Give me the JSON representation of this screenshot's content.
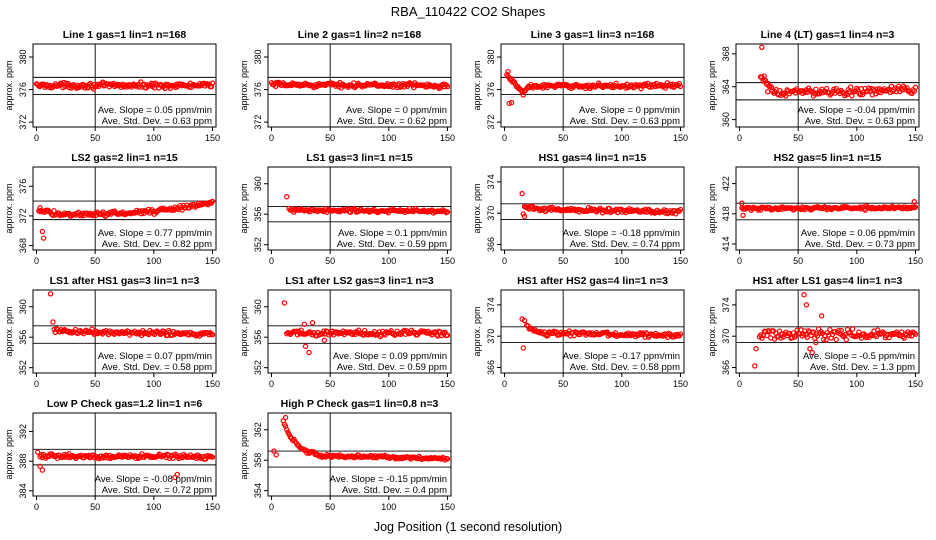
{
  "figure": {
    "title": "RBA_110422  CO2 Shapes",
    "xlabel": "Jog Position (1 second resolution)",
    "colors": {
      "points": "#ff0000",
      "axes": "#000000",
      "background": "#ffffff"
    }
  },
  "chart_data": [
    {
      "type": "scatter",
      "title": "Line 1 gas=1 lin=1 n=168",
      "ylabel": "approx. ppm",
      "xlim": [
        -3,
        153
      ],
      "ylim": [
        371.4,
        381.6
      ],
      "xticks": [
        0,
        50,
        100,
        150
      ],
      "yticks": [
        372,
        376,
        380
      ],
      "hlines": [
        377.5,
        375.4
      ],
      "vline": 50,
      "slope_text": "Ave. Slope = 0.05 ppm/min",
      "sd_text": "Ave. Std. Dev. = 0.63 ppm",
      "x_range": [
        0,
        150
      ],
      "profile": [
        [
          0,
          376.5
        ],
        [
          150,
          376.5
        ]
      ],
      "noise": 0.35,
      "n_points": 168,
      "outliers": []
    },
    {
      "type": "scatter",
      "title": "Line 2 gas=1 lin=2 n=168",
      "ylabel": "approx. ppm",
      "xlim": [
        -3,
        153
      ],
      "ylim": [
        371.4,
        381.6
      ],
      "xticks": [
        0,
        50,
        100,
        150
      ],
      "yticks": [
        372,
        376,
        380
      ],
      "hlines": [
        377.5,
        375.4
      ],
      "vline": 50,
      "slope_text": "Ave. Slope = 0 ppm/min",
      "sd_text": "Ave. Std. Dev. = 0.62 ppm",
      "x_range": [
        0,
        150
      ],
      "profile": [
        [
          0,
          376.6
        ],
        [
          150,
          376.5
        ]
      ],
      "noise": 0.3,
      "n_points": 168,
      "outliers": []
    },
    {
      "type": "scatter",
      "title": "Line 3 gas=1 lin=3 n=168",
      "ylabel": "approx. ppm",
      "xlim": [
        -3,
        153
      ],
      "ylim": [
        371.4,
        381.6
      ],
      "xticks": [
        0,
        50,
        100,
        150
      ],
      "yticks": [
        372,
        376,
        380
      ],
      "hlines": [
        377.5,
        375.4
      ],
      "vline": 50,
      "slope_text": "Ave. Slope = 0 ppm/min",
      "sd_text": "Ave. Std. Dev. = 0.63 ppm",
      "x_range": [
        2,
        150
      ],
      "profile": [
        [
          2,
          377.8
        ],
        [
          10,
          376.5
        ],
        [
          16,
          375.6
        ],
        [
          22,
          376.4
        ],
        [
          150,
          376.5
        ]
      ],
      "noise": 0.3,
      "n_points": 160,
      "outliers": [
        [
          4,
          374.3
        ],
        [
          6,
          374.4
        ],
        [
          3,
          378.2
        ]
      ]
    },
    {
      "type": "scatter",
      "title": "Line 4 (LT) gas=1 lin=4 n=3",
      "ylabel": "approx. ppm",
      "xlim": [
        -3,
        153
      ],
      "ylim": [
        359.1,
        369.2
      ],
      "xticks": [
        0,
        50,
        100,
        150
      ],
      "yticks": [
        360,
        364,
        368
      ],
      "hlines": [
        364.5,
        362.4
      ],
      "vline": 50,
      "slope_text": "Ave. Slope = -0.04 ppm/min",
      "sd_text": "Ave. Std. Dev. = 0.63 ppm",
      "x_range": [
        18,
        150
      ],
      "profile": [
        [
          18,
          365
        ],
        [
          30,
          363.3
        ],
        [
          150,
          363.6
        ]
      ],
      "noise": 0.55,
      "n_points": 130,
      "outliers": [
        [
          19,
          368.8
        ],
        [
          21,
          365.3
        ],
        [
          24,
          363.4
        ]
      ]
    },
    {
      "type": "scatter",
      "title": "LS2 gas=2 lin=1 n=15",
      "ylabel": "approx. ppm",
      "xlim": [
        -3,
        153
      ],
      "ylim": [
        367.4,
        378.6
      ],
      "xticks": [
        0,
        50,
        100,
        150
      ],
      "yticks": [
        368,
        372,
        376
      ],
      "hlines": [
        374,
        371.5
      ],
      "vline": 50,
      "slope_text": "Ave. Slope = 0.77 ppm/min",
      "sd_text": "Ave. Std. Dev. = 0.82 ppm",
      "x_range": [
        2,
        150
      ],
      "profile": [
        [
          2,
          372.8
        ],
        [
          15,
          372.3
        ],
        [
          50,
          372.2
        ],
        [
          100,
          372.6
        ],
        [
          150,
          373.8
        ]
      ],
      "noise": 0.35,
      "n_points": 150,
      "outliers": [
        [
          5,
          369.9
        ],
        [
          6,
          369
        ],
        [
          3,
          373.1
        ]
      ]
    },
    {
      "type": "scatter",
      "title": "LS1 gas=3 lin=1 n=15",
      "ylabel": "approx. ppm",
      "xlim": [
        -3,
        153
      ],
      "ylim": [
        351.3,
        362.2
      ],
      "xticks": [
        0,
        50,
        100,
        150
      ],
      "yticks": [
        352,
        356,
        360
      ],
      "hlines": [
        357,
        355
      ],
      "vline": 50,
      "slope_text": "Ave. Slope = 0.1 ppm/min",
      "sd_text": "Ave. Std. Dev. = 0.59 ppm",
      "x_range": [
        15,
        150
      ],
      "profile": [
        [
          15,
          356.5
        ],
        [
          150,
          356.4
        ]
      ],
      "noise": 0.3,
      "n_points": 135,
      "outliers": [
        [
          13,
          358.3
        ]
      ]
    },
    {
      "type": "scatter",
      "title": "HS1 gas=4 lin=1 n=15",
      "ylabel": "approx. ppm",
      "xlim": [
        -3,
        153
      ],
      "ylim": [
        365.3,
        375.9
      ],
      "xticks": [
        0,
        50,
        100,
        150
      ],
      "yticks": [
        366,
        370,
        374
      ],
      "hlines": [
        371.2,
        369.2
      ],
      "vline": 50,
      "slope_text": "Ave. Slope = -0.18 ppm/min",
      "sd_text": "Ave. Std. Dev. = 0.74 ppm",
      "x_range": [
        17,
        150
      ],
      "profile": [
        [
          17,
          370.8
        ],
        [
          30,
          370.5
        ],
        [
          150,
          370.2
        ]
      ],
      "noise": 0.3,
      "n_points": 135,
      "outliers": [
        [
          15,
          372.5
        ],
        [
          17,
          369.6
        ],
        [
          16,
          369.9
        ]
      ]
    },
    {
      "type": "scatter",
      "title": "HS2 gas=5 lin=1 n=15",
      "ylabel": "approx. ppm",
      "xlim": [
        -3,
        153
      ],
      "ylim": [
        413.2,
        424.2
      ],
      "xticks": [
        0,
        50,
        100,
        150
      ],
      "yticks": [
        414,
        418,
        422
      ],
      "hlines": [
        419.4,
        417.2
      ],
      "vline": 50,
      "slope_text": "Ave. Slope = 0.06 ppm/min",
      "sd_text": "Ave. Std. Dev. = 0.73 ppm",
      "x_range": [
        2,
        150
      ],
      "profile": [
        [
          2,
          418.7
        ],
        [
          150,
          418.8
        ]
      ],
      "noise": 0.25,
      "n_points": 150,
      "outliers": [
        [
          2,
          419.4
        ],
        [
          3,
          417.8
        ],
        [
          149,
          419.6
        ]
      ]
    },
    {
      "type": "scatter",
      "title": "LS1 after HS1 gas=3 lin=1 n=3",
      "ylabel": "approx. ppm",
      "xlim": [
        -3,
        153
      ],
      "ylim": [
        351.3,
        362.2
      ],
      "xticks": [
        0,
        50,
        100,
        150
      ],
      "yticks": [
        352,
        356,
        360
      ],
      "hlines": [
        357.5,
        355.2
      ],
      "vline": 50,
      "slope_text": "Ave. Slope = 0.07 ppm/min",
      "sd_text": "Ave. Std. Dev. = 0.58 ppm",
      "x_range": [
        15,
        150
      ],
      "profile": [
        [
          15,
          356.8
        ],
        [
          150,
          356.4
        ]
      ],
      "noise": 0.35,
      "n_points": 135,
      "outliers": [
        [
          12,
          361.7
        ],
        [
          14,
          358
        ]
      ]
    },
    {
      "type": "scatter",
      "title": "LS1 after LS2 gas=3 lin=1 n=3",
      "ylabel": "approx. ppm",
      "xlim": [
        -3,
        153
      ],
      "ylim": [
        351.3,
        362.2
      ],
      "xticks": [
        0,
        50,
        100,
        150
      ],
      "yticks": [
        352,
        356,
        360
      ],
      "hlines": [
        357.5,
        355.2
      ],
      "vline": 50,
      "slope_text": "Ave. Slope = 0.09 ppm/min",
      "sd_text": "Ave. Std. Dev. = 0.59 ppm",
      "x_range": [
        13,
        150
      ],
      "profile": [
        [
          13,
          356.5
        ],
        [
          150,
          356.6
        ]
      ],
      "noise": 0.45,
      "n_points": 135,
      "outliers": [
        [
          11,
          360.5
        ],
        [
          32,
          354
        ],
        [
          29,
          354.8
        ],
        [
          28,
          357.7
        ],
        [
          35,
          357.9
        ],
        [
          45,
          355.6
        ]
      ]
    },
    {
      "type": "scatter",
      "title": "HS1 after HS2 gas=4 lin=1 n=3",
      "ylabel": "approx. ppm",
      "xlim": [
        -3,
        153
      ],
      "ylim": [
        365.3,
        375.9
      ],
      "xticks": [
        0,
        50,
        100,
        150
      ],
      "yticks": [
        366,
        370,
        374
      ],
      "hlines": [
        371.2,
        369.2
      ],
      "vline": 50,
      "slope_text": "Ave. Slope = -0.17 ppm/min",
      "sd_text": "Ave. Std. Dev. = 0.58 ppm",
      "x_range": [
        20,
        150
      ],
      "profile": [
        [
          20,
          371
        ],
        [
          30,
          370.4
        ],
        [
          150,
          370.1
        ]
      ],
      "noise": 0.3,
      "n_points": 130,
      "outliers": [
        [
          15,
          372.2
        ],
        [
          17,
          372
        ],
        [
          16,
          368.5
        ],
        [
          19,
          371.4
        ]
      ]
    },
    {
      "type": "scatter",
      "title": "HS1 after LS1 gas=4 lin=1 n=3",
      "ylabel": "approx. ppm",
      "xlim": [
        -3,
        153
      ],
      "ylim": [
        365.3,
        375.9
      ],
      "xticks": [
        0,
        50,
        100,
        150
      ],
      "yticks": [
        366,
        370,
        374
      ],
      "hlines": [
        371.2,
        369.2
      ],
      "vline": 50,
      "slope_text": "Ave. Slope = -0.5 ppm/min",
      "sd_text": "Ave. Std. Dev. = 1.3 ppm",
      "x_range": [
        17,
        150
      ],
      "profile": [
        [
          17,
          370.3
        ],
        [
          150,
          370.2
        ]
      ],
      "noise": 0.7,
      "n_points": 125,
      "outliers": [
        [
          13,
          366.2
        ],
        [
          14,
          368.4
        ],
        [
          55,
          375.3
        ],
        [
          57,
          374
        ],
        [
          70,
          372.6
        ],
        [
          65,
          369.2
        ],
        [
          62,
          367.9
        ],
        [
          60,
          368.4
        ]
      ]
    },
    {
      "type": "scatter",
      "title": "Low P Check gas=1.2 lin=1 n=6",
      "ylabel": "approx. ppm",
      "xlim": [
        -3,
        153
      ],
      "ylim": [
        383.3,
        394.5
      ],
      "xticks": [
        0,
        50,
        100,
        150
      ],
      "yticks": [
        384,
        388,
        392
      ],
      "hlines": [
        389.6,
        387.5
      ],
      "vline": 50,
      "slope_text": "Ave. Slope = -0.08 ppm/min",
      "sd_text": "Ave. Std. Dev. = 0.72 ppm",
      "x_range": [
        3,
        150
      ],
      "profile": [
        [
          3,
          388.7
        ],
        [
          150,
          388.6
        ]
      ],
      "noise": 0.3,
      "n_points": 150,
      "outliers": [
        [
          3,
          387.3
        ],
        [
          5,
          386.8
        ],
        [
          120,
          386.2
        ],
        [
          118,
          385.8
        ],
        [
          1,
          389.2
        ]
      ]
    },
    {
      "type": "scatter",
      "title": "High P Check gas=1 lin=0.8 n=3",
      "ylabel": "approx. ppm",
      "xlim": [
        -3,
        153
      ],
      "ylim": [
        353.3,
        364.2
      ],
      "xticks": [
        0,
        50,
        100,
        150
      ],
      "yticks": [
        354,
        358,
        362
      ],
      "hlines": [
        359.2,
        357.1
      ],
      "vline": 50,
      "slope_text": "Ave. Slope = -0.15 ppm/min",
      "sd_text": "Ave. Std. Dev. = 0.4 ppm",
      "x_range": [
        10,
        150
      ],
      "profile": [
        [
          10,
          363.2
        ],
        [
          15,
          361.3
        ],
        [
          25,
          359.5
        ],
        [
          40,
          358.6
        ],
        [
          150,
          358.2
        ]
      ],
      "noise": 0.22,
      "n_points": 140,
      "outliers": [
        [
          2,
          359.2
        ],
        [
          4,
          358.7
        ],
        [
          12,
          363.6
        ]
      ]
    }
  ]
}
